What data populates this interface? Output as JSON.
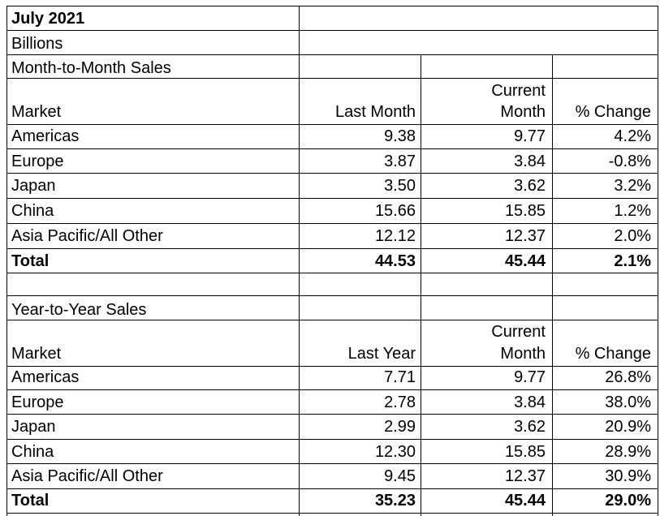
{
  "title": "July 2021",
  "unit": "Billions",
  "mtm": {
    "section": "Month-to-Month Sales",
    "headers": {
      "market": "Market",
      "prev_line1": "",
      "prev_line2": "Last Month",
      "cur_line1": "Current",
      "cur_line2": "Month",
      "pct": "% Change"
    },
    "rows": [
      {
        "market": "Americas",
        "prev": "9.38",
        "cur": "9.77",
        "pct": "4.2%"
      },
      {
        "market": "Europe",
        "prev": "3.87",
        "cur": "3.84",
        "pct": "-0.8%"
      },
      {
        "market": "Japan",
        "prev": "3.50",
        "cur": "3.62",
        "pct": "3.2%"
      },
      {
        "market": "China",
        "prev": "15.66",
        "cur": "15.85",
        "pct": "1.2%"
      },
      {
        "market": "Asia Pacific/All Other",
        "prev": "12.12",
        "cur": "12.37",
        "pct": "2.0%"
      }
    ],
    "total": {
      "market": "Total",
      "prev": "44.53",
      "cur": "45.44",
      "pct": "2.1%"
    }
  },
  "yty": {
    "section": "Year-to-Year Sales",
    "headers": {
      "market": "Market",
      "prev_line1": "",
      "prev_line2": "Last Year",
      "cur_line1": "Current",
      "cur_line2": "Month",
      "pct": "% Change"
    },
    "rows": [
      {
        "market": "Americas",
        "prev": "7.71",
        "cur": "9.77",
        "pct": "26.8%"
      },
      {
        "market": "Europe",
        "prev": "2.78",
        "cur": "3.84",
        "pct": "38.0%"
      },
      {
        "market": "Japan",
        "prev": "2.99",
        "cur": "3.62",
        "pct": "20.9%"
      },
      {
        "market": "China",
        "prev": "12.30",
        "cur": "15.85",
        "pct": "28.9%"
      },
      {
        "market": "Asia Pacific/All Other",
        "prev": "9.45",
        "cur": "12.37",
        "pct": "30.9%"
      }
    ],
    "total": {
      "market": "Total",
      "prev": "35.23",
      "cur": "45.44",
      "pct": "29.0%"
    }
  }
}
